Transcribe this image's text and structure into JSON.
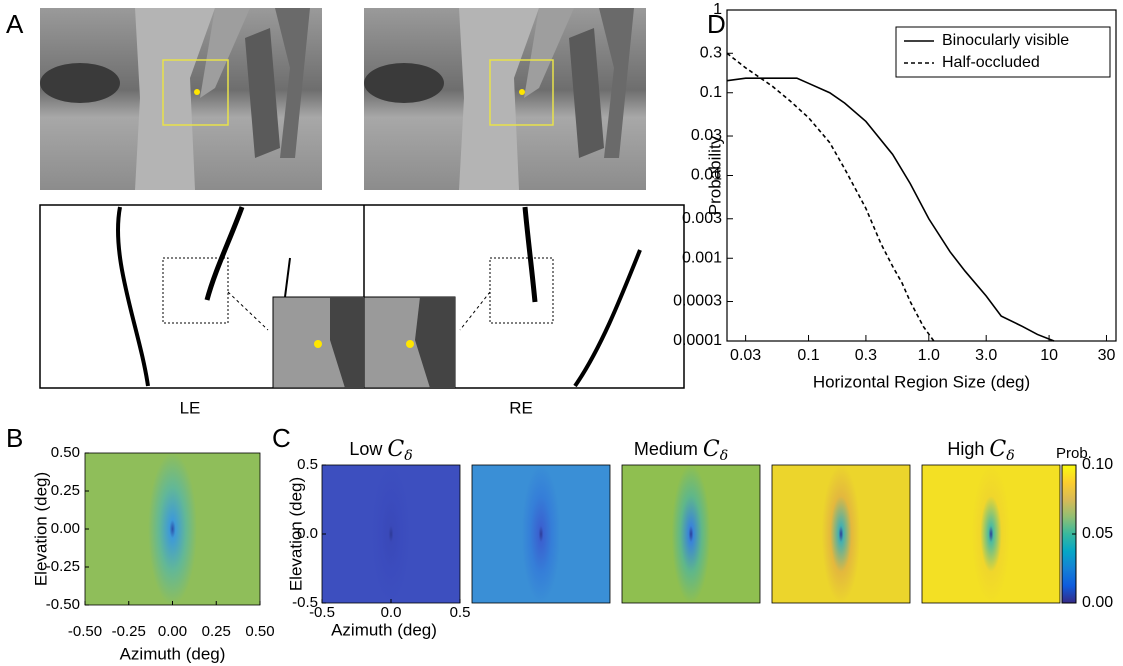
{
  "panel_a": {
    "panel": "A",
    "captions": [
      "LE",
      "RE"
    ]
  },
  "chart_data": [
    {
      "type": "line",
      "panel": "D",
      "xlabel": "Horizontal Region Size (deg)",
      "ylabel": "Probability",
      "xscale": "log",
      "yscale": "log",
      "xlim": [
        0.021,
        36
      ],
      "ylim": [
        0.0001,
        1
      ],
      "xticks": [
        0.03,
        0.1,
        0.3,
        {
          "value": 1,
          "label": "1.0"
        },
        {
          "value": 3,
          "label": "3.0"
        },
        10,
        30
      ],
      "yticks": [
        1,
        0.3,
        0.1,
        0.03,
        0.01,
        0.003,
        0.001,
        0.0003,
        0.0001
      ],
      "legend": "upper right",
      "series": [
        {
          "name": "Binocularly visible",
          "color": "#000000",
          "style": "solid",
          "x": [
            0.021,
            0.03,
            0.05,
            0.08,
            0.1,
            0.15,
            0.2,
            0.3,
            0.5,
            0.7,
            1.0,
            1.5,
            2.0,
            3.0,
            4.0,
            6.0,
            8.0,
            11.0
          ],
          "values": [
            0.14,
            0.15,
            0.15,
            0.15,
            0.13,
            0.1,
            0.075,
            0.045,
            0.018,
            0.008,
            0.003,
            0.0012,
            0.0007,
            0.00035,
            0.0002,
            0.00015,
            0.00012,
            0.0001
          ]
        },
        {
          "name": "Half-occluded",
          "color": "#000000",
          "style": "dashed",
          "x": [
            0.021,
            0.03,
            0.05,
            0.07,
            0.1,
            0.15,
            0.2,
            0.3,
            0.4,
            0.5,
            0.6,
            0.7,
            0.9,
            1.1
          ],
          "values": [
            0.3,
            0.2,
            0.12,
            0.08,
            0.05,
            0.025,
            0.012,
            0.004,
            0.0015,
            0.0008,
            0.0005,
            0.0003,
            0.00015,
            0.0001
          ]
        }
      ]
    },
    {
      "type": "heatmap",
      "panel": "B",
      "xlabel": "Azimuth (deg)",
      "ylabel": "Elevation (deg)",
      "xlim": [
        -0.5,
        0.5
      ],
      "ylim": [
        -0.5,
        0.5
      ],
      "xticks": [
        {
          "value": -0.5,
          "label": "-0.50"
        },
        {
          "value": -0.25,
          "label": "-0.25"
        },
        {
          "value": 0,
          "label": "0.00"
        },
        {
          "value": 0.25,
          "label": "0.25"
        },
        {
          "value": 0.5,
          "label": "0.50"
        }
      ],
      "yticks": [
        {
          "value": 0.5,
          "label": "0.50"
        },
        {
          "value": 0.25,
          "label": "0.25"
        },
        {
          "value": 0,
          "label": "0.00"
        },
        {
          "value": -0.25,
          "label": "-0.25"
        },
        {
          "value": -0.5,
          "label": "-0.50"
        }
      ]
    },
    {
      "type": "heatmap_row",
      "panel": "C",
      "titles": [
        "Low",
        "Medium",
        "High"
      ],
      "symbol": "C",
      "subscript": "δ",
      "xlabel": "Azimuth (deg)",
      "ylabel": "Elevation (deg)",
      "xlim": [
        -0.5,
        0.5
      ],
      "ylim": [
        -0.5,
        0.5
      ],
      "xticks": [
        -0.5,
        {
          "value": 0,
          "label": "0.0"
        },
        0.5
      ],
      "yticks": [
        0.5,
        {
          "value": 0,
          "label": "0.0"
        },
        -0.5
      ],
      "colorbar": {
        "label": "Prob.",
        "lim": [
          0,
          0.1
        ],
        "ticks": [
          {
            "value": 0.1,
            "label": "0.10"
          },
          {
            "value": 0.05,
            "label": "0.05"
          },
          {
            "value": 0,
            "label": "0.00"
          }
        ]
      }
    }
  ]
}
